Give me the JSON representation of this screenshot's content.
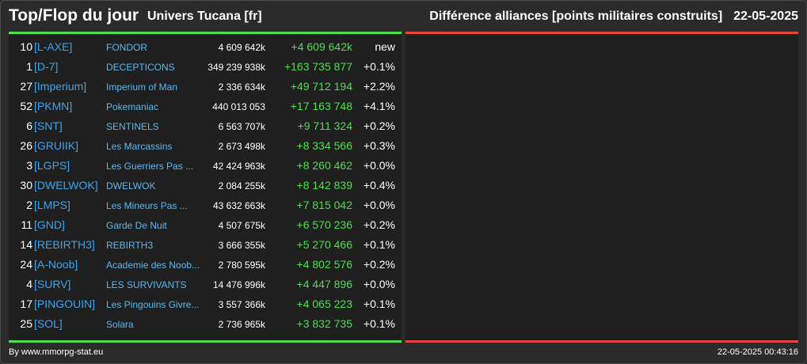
{
  "header": {
    "title": "Top/Flop du jour",
    "universe": "Univers Tucana [fr]",
    "ranking": "Différence alliances [points militaires construits]",
    "date": "22-05-2025"
  },
  "colors": {
    "top_accent": "#4ede4e",
    "flop_accent": "#e0473c",
    "tag": "#3ea3ea",
    "name": "#5ab8f0",
    "diff": "#4ede4e"
  },
  "top_rows": [
    {
      "rank": "10",
      "tag": "[L-AXE]",
      "name": "FONDOR",
      "points": "4 609 642k",
      "diff": "+4 609 642k",
      "pct": "new"
    },
    {
      "rank": "1",
      "tag": "[D-7]",
      "name": "DECEPTICONS",
      "points": "349 239 938k",
      "diff": "+163 735 877",
      "pct": "+0.1%"
    },
    {
      "rank": "27",
      "tag": "[Imperium]",
      "name": "Imperium of Man",
      "points": "2 336 634k",
      "diff": "+49 712 194",
      "pct": "+2.2%"
    },
    {
      "rank": "52",
      "tag": "[PKMN]",
      "name": "Pokemaniac",
      "points": "440 013 053",
      "diff": "+17 163 748",
      "pct": "+4.1%"
    },
    {
      "rank": "6",
      "tag": "[SNT]",
      "name": "SENTINELS",
      "points": "6 563 707k",
      "diff": "+9 711 324",
      "pct": "+0.2%"
    },
    {
      "rank": "26",
      "tag": "[GRUIIK]",
      "name": "Les Marcassins",
      "points": "2 673 498k",
      "diff": "+8 334 566",
      "pct": "+0.3%"
    },
    {
      "rank": "3",
      "tag": "[LGPS]",
      "name": "Les Guerriers Pas ...",
      "points": "42 424 963k",
      "diff": "+8 260 462",
      "pct": "+0.0%"
    },
    {
      "rank": "30",
      "tag": "[DWELWOK]",
      "name": "DWELWOK",
      "points": "2 084 255k",
      "diff": "+8 142 839",
      "pct": "+0.4%"
    },
    {
      "rank": "2",
      "tag": "[LMPS]",
      "name": "Les Mineurs Pas ...",
      "points": "43 632 663k",
      "diff": "+7 815 042",
      "pct": "+0.0%"
    },
    {
      "rank": "11",
      "tag": "[GND]",
      "name": "Garde De Nuit",
      "points": "4 507 675k",
      "diff": "+6 570 236",
      "pct": "+0.2%"
    },
    {
      "rank": "14",
      "tag": "[REBIRTH3]",
      "name": "REBIRTH3",
      "points": "3 666 355k",
      "diff": "+5 270 466",
      "pct": "+0.1%"
    },
    {
      "rank": "24",
      "tag": "[A-Noob]",
      "name": "Academie des Noob...",
      "points": "2 780 595k",
      "diff": "+4 802 576",
      "pct": "+0.2%"
    },
    {
      "rank": "4",
      "tag": "[SURV]",
      "name": "LES SURVIVANTS",
      "points": "14 476 996k",
      "diff": "+4 447 896",
      "pct": "+0.0%"
    },
    {
      "rank": "17",
      "tag": "[PINGOUIN]",
      "name": "Les Pingouins Givre...",
      "points": "3 557 366k",
      "diff": "+4 065 223",
      "pct": "+0.1%"
    },
    {
      "rank": "25",
      "tag": "[SOL]",
      "name": "Solara",
      "points": "2 736 965k",
      "diff": "+3 832 735",
      "pct": "+0.1%"
    }
  ],
  "footer": {
    "source": "By www.mmorpg-stat.eu",
    "timestamp": "22-05-2025 00:43:16"
  }
}
